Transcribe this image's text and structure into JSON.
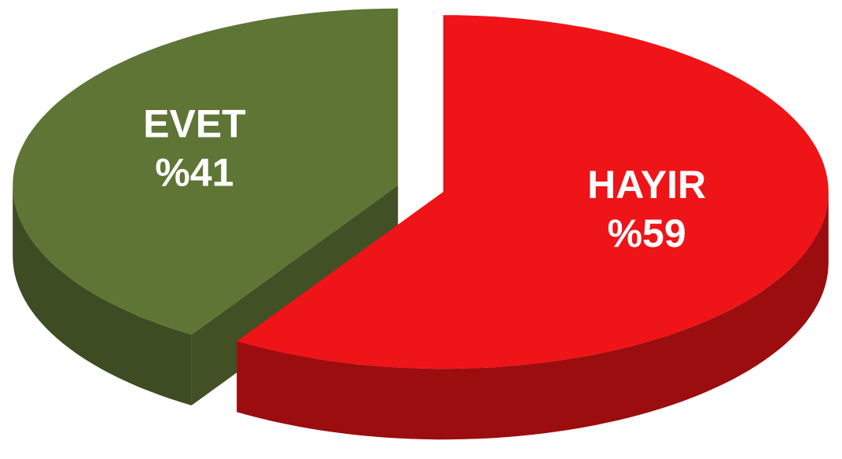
{
  "chart_data": {
    "type": "pie",
    "categories": [
      "EVET",
      "HAYIR"
    ],
    "values": [
      41,
      59
    ],
    "value_labels": [
      "%41",
      "%59"
    ],
    "colors": [
      "#5f7535",
      "#ee1418"
    ]
  }
}
